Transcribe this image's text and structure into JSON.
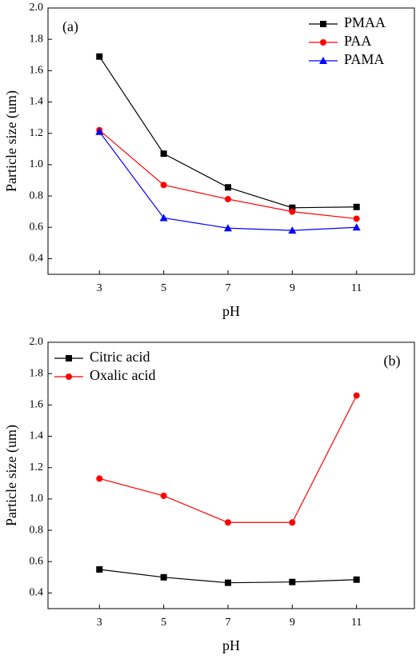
{
  "chart_data": [
    {
      "type": "line",
      "panel_label": "(a)",
      "x_label": "pH",
      "y_label": "Particle size (um)",
      "x": [
        3,
        5,
        7,
        9,
        11
      ],
      "xlim": [
        1.4,
        12.8
      ],
      "xticks": [
        3,
        5,
        7,
        9,
        11
      ],
      "ylim": [
        0.3,
        2.0
      ],
      "yticks": [
        {
          "value": 2,
          "label": "2.0"
        },
        1.8,
        1.6,
        1.4,
        1.2,
        {
          "value": 1,
          "label": "1.0"
        },
        0.8,
        0.6,
        0.4
      ],
      "legend": "upper right",
      "series": [
        {
          "name": "PMAA",
          "color": "#000000",
          "marker": "square",
          "values": [
            1.69,
            1.07,
            0.855,
            0.725,
            0.73
          ]
        },
        {
          "name": "PAA",
          "color": "#ff0000",
          "marker": "circle",
          "values": [
            1.22,
            0.87,
            0.78,
            0.7,
            0.655
          ]
        },
        {
          "name": "PAMA",
          "color": "#0000ff",
          "marker": "triangle",
          "values": [
            1.21,
            0.66,
            0.595,
            0.58,
            0.6
          ]
        }
      ]
    },
    {
      "type": "line",
      "panel_label": "(b)",
      "x_label": "pH",
      "y_label": "Particle size (um)",
      "x": [
        3,
        5,
        7,
        9,
        11
      ],
      "xlim": [
        1.4,
        12.8
      ],
      "xticks": [
        3,
        5,
        7,
        9,
        11
      ],
      "ylim": [
        0.3,
        2.0
      ],
      "yticks": [
        {
          "value": 2,
          "label": "2.0"
        },
        1.8,
        1.6,
        1.4,
        1.2,
        {
          "value": 1,
          "label": "1.0"
        },
        0.8,
        0.6,
        0.4
      ],
      "legend": "upper left",
      "series": [
        {
          "name": "Citric acid",
          "color": "#000000",
          "marker": "square",
          "values": [
            0.55,
            0.5,
            0.465,
            0.47,
            0.485
          ]
        },
        {
          "name": "Oxalic acid",
          "color": "#ff0000",
          "marker": "circle",
          "values": [
            1.13,
            1.02,
            0.85,
            0.85,
            1.66
          ]
        }
      ]
    }
  ]
}
